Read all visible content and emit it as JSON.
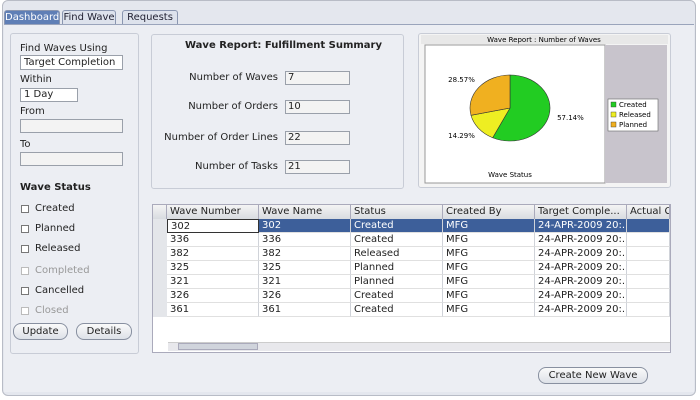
{
  "tabs": [
    "Dashboard",
    "Find Wave",
    "Requests"
  ],
  "active_tab": 0,
  "search": {
    "find_label": "Find Waves Using",
    "find_value": "Target Completion",
    "within_label": "Within",
    "within_value": "1 Day",
    "from_label": "From",
    "to_label": "To"
  },
  "wave_status": {
    "title": "Wave Status",
    "options": [
      {
        "label": "Created",
        "enabled": true
      },
      {
        "label": "Planned",
        "enabled": true
      },
      {
        "label": "Released",
        "enabled": true
      },
      {
        "label": "Completed",
        "enabled": false
      },
      {
        "label": "Cancelled",
        "enabled": true
      },
      {
        "label": "Closed",
        "enabled": false
      }
    ]
  },
  "buttons": {
    "update": "Update",
    "details": "Details",
    "create": "Create New Wave"
  },
  "summary": {
    "title": "Wave Report: Fulfillment Summary",
    "rows": [
      {
        "label": "Number of Waves",
        "value": 7
      },
      {
        "label": "Number of Orders",
        "value": 10
      },
      {
        "label": "Number of Order Lines",
        "value": 22
      },
      {
        "label": "Number of Tasks",
        "value": 21
      }
    ]
  },
  "pie_chart": {
    "type": "pie",
    "title": "Wave Report : Number of Waves",
    "x_label": "Wave Status",
    "categories": [
      "Created",
      "Released",
      "Planned"
    ],
    "values": [
      57.14,
      14.29,
      28.57
    ],
    "value_labels": [
      "57.14%",
      "14.29%",
      "28.57%"
    ],
    "colors": [
      "#22cc22",
      "#eeee22",
      "#f0b020"
    ]
  },
  "table": {
    "columns": [
      "Wave Number",
      "Wave Name",
      "Status",
      "Created By",
      "Target Comple...",
      "Actual C"
    ],
    "selected_row": 0,
    "rows": [
      [
        "302",
        "302",
        "Created",
        "MFG",
        "24-APR-2009 20:..."
      ],
      [
        "336",
        "336",
        "Created",
        "MFG",
        "24-APR-2009 20:..."
      ],
      [
        "382",
        "382",
        "Released",
        "MFG",
        "24-APR-2009 20:..."
      ],
      [
        "325",
        "325",
        "Planned",
        "MFG",
        "24-APR-2009 20:..."
      ],
      [
        "321",
        "321",
        "Planned",
        "MFG",
        "24-APR-2009 20:..."
      ],
      [
        "326",
        "326",
        "Created",
        "MFG",
        "24-APR-2009 20:..."
      ],
      [
        "361",
        "361",
        "Created",
        "MFG",
        "24-APR-2009 20:..."
      ]
    ]
  }
}
